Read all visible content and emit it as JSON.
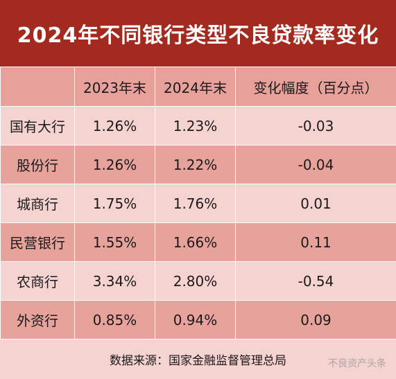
{
  "chart_data": {
    "type": "table",
    "title": "2024年不同银行类型不良贷款率变化",
    "columns": [
      "",
      "2023年末",
      "2024年末",
      "变化幅度（百分点）"
    ],
    "rows": [
      {
        "category": "国有大行",
        "y2023": "1.26%",
        "y2024": "1.23%",
        "change": "-0.03"
      },
      {
        "category": "股份行",
        "y2023": "1.26%",
        "y2024": "1.22%",
        "change": "-0.04"
      },
      {
        "category": "城商行",
        "y2023": "1.75%",
        "y2024": "1.76%",
        "change": "0.01"
      },
      {
        "category": "民营银行",
        "y2023": "1.55%",
        "y2024": "1.66%",
        "change": "0.11"
      },
      {
        "category": "农商行",
        "y2023": "3.34%",
        "y2024": "2.80%",
        "change": "-0.54"
      },
      {
        "category": "外资行",
        "y2023": "0.85%",
        "y2024": "0.94%",
        "change": "0.09"
      }
    ],
    "source": "数据来源：国家金融监督管理总局"
  },
  "watermark": "不良资产头条",
  "colors": {
    "title_bg": "#a32a1f",
    "header_bg": "#e7a09a",
    "row_light": "#f5d3d0",
    "row_dark": "#e8a29c"
  }
}
